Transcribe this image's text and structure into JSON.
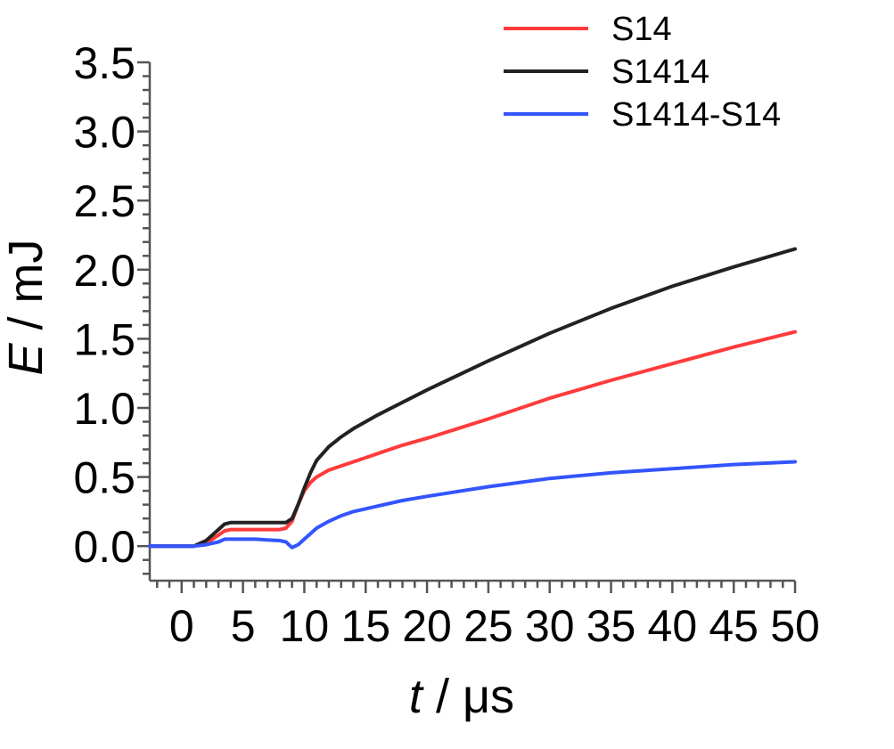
{
  "chart_data": {
    "type": "line",
    "xlabel_var": "t",
    "xlabel_unit": " / μs",
    "ylabel_var": "E",
    "ylabel_unit": " / mJ",
    "xlim": [
      -2.6,
      50
    ],
    "ylim": [
      -0.25,
      3.5
    ],
    "x_ticks": [
      0,
      5,
      10,
      15,
      20,
      25,
      30,
      35,
      40,
      45,
      50
    ],
    "y_ticks": [
      0.0,
      0.5,
      1.0,
      1.5,
      2.0,
      2.5,
      3.0,
      3.5
    ],
    "x_tick_labels": [
      "0",
      "5",
      "10",
      "15",
      "20",
      "25",
      "30",
      "35",
      "40",
      "45",
      "50"
    ],
    "y_tick_labels": [
      "0.0",
      "0.5",
      "1.0",
      "1.5",
      "2.0",
      "2.5",
      "3.0",
      "3.5"
    ],
    "grid": false,
    "legend_position": "top-right",
    "series": [
      {
        "name": "S14",
        "color": "#ff3b3b",
        "x": [
          -2.6,
          0,
          1,
          2,
          3,
          3.5,
          4,
          5,
          6,
          7,
          8,
          8.5,
          9,
          9.5,
          10,
          10.5,
          11,
          12,
          13,
          14,
          15,
          16,
          18,
          20,
          25,
          30,
          35,
          40,
          45,
          50
        ],
        "y": [
          0,
          0,
          0,
          0.02,
          0.08,
          0.11,
          0.12,
          0.12,
          0.12,
          0.12,
          0.12,
          0.13,
          0.18,
          0.3,
          0.4,
          0.46,
          0.5,
          0.55,
          0.58,
          0.61,
          0.64,
          0.67,
          0.73,
          0.78,
          0.92,
          1.07,
          1.2,
          1.32,
          1.44,
          1.55
        ]
      },
      {
        "name": "S1414",
        "color": "#222222",
        "x": [
          -2.6,
          0,
          1,
          2,
          3,
          3.5,
          4,
          5,
          6,
          7,
          8,
          8.5,
          9,
          9.5,
          10,
          10.5,
          11,
          12,
          13,
          14,
          15,
          16,
          18,
          20,
          25,
          30,
          35,
          40,
          45,
          50
        ],
        "y": [
          0,
          0,
          0,
          0.04,
          0.12,
          0.16,
          0.17,
          0.17,
          0.17,
          0.17,
          0.17,
          0.17,
          0.2,
          0.3,
          0.42,
          0.53,
          0.62,
          0.72,
          0.79,
          0.85,
          0.9,
          0.95,
          1.04,
          1.13,
          1.34,
          1.54,
          1.72,
          1.88,
          2.02,
          2.15
        ]
      },
      {
        "name": "S1414-S14",
        "color": "#3355ff",
        "x": [
          -2.6,
          0,
          1,
          2,
          3,
          3.5,
          4,
          5,
          6,
          7,
          8,
          8.5,
          9,
          9.5,
          10,
          10.5,
          11,
          12,
          13,
          14,
          15,
          16,
          18,
          20,
          25,
          30,
          35,
          40,
          45,
          50
        ],
        "y": [
          0,
          0,
          0,
          0.01,
          0.03,
          0.05,
          0.05,
          0.05,
          0.05,
          0.045,
          0.04,
          0.03,
          -0.01,
          0.01,
          0.05,
          0.09,
          0.13,
          0.18,
          0.22,
          0.25,
          0.27,
          0.29,
          0.33,
          0.36,
          0.43,
          0.49,
          0.53,
          0.56,
          0.59,
          0.61
        ]
      }
    ]
  }
}
